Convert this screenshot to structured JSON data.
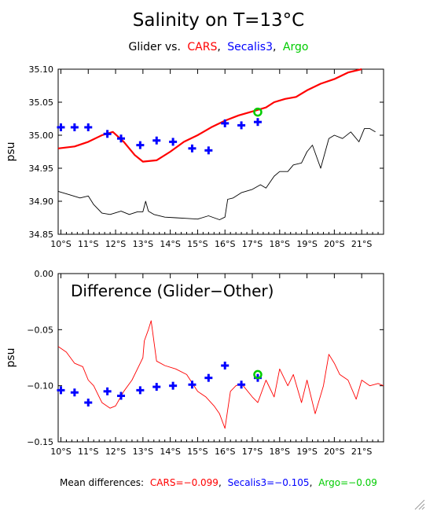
{
  "title": "Salinity on T=13°C",
  "subtitle": {
    "prefix": "Glider vs.",
    "cars": "CARS",
    "sep1": ",",
    "secalis": "Secalis3",
    "sep2": ",",
    "argo": "Argo"
  },
  "footer": {
    "prefix": "Mean differences:",
    "cars": "CARS=−0.099",
    "sep1": ",",
    "secalis": "Secalis3=−0.105",
    "sep2": ",",
    "argo": "Argo=−0.09"
  },
  "colors": {
    "cars": "#ff0000",
    "secalis": "#0000ff",
    "argo": "#00cc00",
    "glider": "#000000"
  },
  "chart_data": [
    {
      "type": "line",
      "ylabel": "psu",
      "ylim": [
        34.85,
        35.1
      ],
      "yticks": [
        "35.10",
        "35.05",
        "35.00",
        "34.95",
        "34.90",
        "34.85"
      ],
      "ytick_values": [
        35.1,
        35.05,
        35.0,
        34.95,
        34.9,
        34.85
      ],
      "xlim": [
        9.9,
        21.8
      ],
      "xticks": [
        "10°S",
        "11°S",
        "12°S",
        "13°S",
        "14°S",
        "15°S",
        "16°S",
        "17°S",
        "18°S",
        "19°S",
        "20°S",
        "21°S"
      ],
      "series": [
        {
          "name": "CARS",
          "x": [
            9.9,
            10.5,
            11.0,
            11.5,
            11.9,
            12.3,
            12.7,
            13.0,
            13.5,
            14.0,
            14.5,
            15.0,
            15.5,
            16.0,
            16.5,
            17.0,
            17.5,
            17.8,
            18.2,
            18.6,
            19.0,
            19.5,
            20.0,
            20.5,
            21.0
          ],
          "y": [
            34.98,
            34.983,
            34.99,
            35.0,
            35.005,
            34.99,
            34.97,
            34.96,
            34.962,
            34.975,
            34.99,
            35.0,
            35.012,
            35.022,
            35.03,
            35.036,
            35.042,
            35.05,
            35.055,
            35.058,
            35.068,
            35.078,
            35.085,
            35.095,
            35.1
          ]
        },
        {
          "name": "Glider",
          "x": [
            9.9,
            10.3,
            10.7,
            11.0,
            11.2,
            11.5,
            11.8,
            12.2,
            12.5,
            12.8,
            13.0,
            13.1,
            13.2,
            13.4,
            13.8,
            14.2,
            14.6,
            15.0,
            15.4,
            15.8,
            16.0,
            16.1,
            16.3,
            16.6,
            17.0,
            17.3,
            17.5,
            17.8,
            18.0,
            18.3,
            18.5,
            18.8,
            19.0,
            19.2,
            19.5,
            19.8,
            20.0,
            20.3,
            20.6,
            20.9,
            21.1,
            21.3,
            21.5
          ],
          "y": [
            34.915,
            34.91,
            34.905,
            34.908,
            34.895,
            34.882,
            34.88,
            34.885,
            34.88,
            34.884,
            34.884,
            34.9,
            34.885,
            34.88,
            34.876,
            34.875,
            34.874,
            34.873,
            34.878,
            34.872,
            34.876,
            34.903,
            34.905,
            34.913,
            34.918,
            34.925,
            34.92,
            34.938,
            34.945,
            34.945,
            34.955,
            34.958,
            34.975,
            34.985,
            34.95,
            34.995,
            35.0,
            34.995,
            35.005,
            34.99,
            35.01,
            35.01,
            35.005
          ]
        },
        {
          "name": "Secalis3",
          "x": [
            10.0,
            10.5,
            11.0,
            11.7,
            12.2,
            12.9,
            13.5,
            14.1,
            14.8,
            15.4,
            16.0,
            16.6,
            17.2
          ],
          "y": [
            35.012,
            35.012,
            35.012,
            35.002,
            34.995,
            34.985,
            34.992,
            34.99,
            34.98,
            34.977,
            35.018,
            35.015,
            35.02
          ]
        },
        {
          "name": "Argo",
          "x": [
            17.2
          ],
          "y": [
            35.035
          ]
        }
      ]
    },
    {
      "type": "line",
      "title": "Difference (Glider−Other)",
      "ylabel": "psu",
      "ylim": [
        -0.15,
        0.0
      ],
      "yticks": [
        "0.00",
        "−0.05",
        "−0.10",
        "−0.15"
      ],
      "ytick_values": [
        0.0,
        -0.05,
        -0.1,
        -0.15
      ],
      "xlim": [
        9.9,
        21.8
      ],
      "xticks": [
        "10°S",
        "11°S",
        "12°S",
        "13°S",
        "14°S",
        "15°S",
        "16°S",
        "17°S",
        "18°S",
        "19°S",
        "20°S",
        "21°S"
      ],
      "series": [
        {
          "name": "CARS",
          "x": [
            9.9,
            10.2,
            10.5,
            10.8,
            11.0,
            11.2,
            11.5,
            11.8,
            12.0,
            12.3,
            12.6,
            12.9,
            13.0,
            13.05,
            13.2,
            13.3,
            13.5,
            13.8,
            14.2,
            14.6,
            15.0,
            15.3,
            15.6,
            15.8,
            16.0,
            16.2,
            16.4,
            16.6,
            17.0,
            17.2,
            17.5,
            17.8,
            18.0,
            18.3,
            18.5,
            18.8,
            19.0,
            19.3,
            19.6,
            19.8,
            20.0,
            20.2,
            20.5,
            20.8,
            21.0,
            21.3,
            21.6,
            21.8
          ],
          "y": [
            -0.065,
            -0.07,
            -0.08,
            -0.083,
            -0.095,
            -0.1,
            -0.115,
            -0.12,
            -0.118,
            -0.105,
            -0.095,
            -0.08,
            -0.075,
            -0.06,
            -0.05,
            -0.042,
            -0.078,
            -0.082,
            -0.085,
            -0.09,
            -0.105,
            -0.11,
            -0.118,
            -0.125,
            -0.138,
            -0.105,
            -0.1,
            -0.098,
            -0.11,
            -0.115,
            -0.095,
            -0.11,
            -0.085,
            -0.1,
            -0.09,
            -0.115,
            -0.095,
            -0.125,
            -0.1,
            -0.072,
            -0.08,
            -0.09,
            -0.095,
            -0.112,
            -0.095,
            -0.1,
            -0.098,
            -0.1
          ]
        },
        {
          "name": "Secalis3",
          "x": [
            10.0,
            10.5,
            11.0,
            11.7,
            12.2,
            12.9,
            13.5,
            14.1,
            14.8,
            15.4,
            16.0,
            16.6,
            17.2
          ],
          "y": [
            -0.104,
            -0.106,
            -0.115,
            -0.105,
            -0.109,
            -0.104,
            -0.101,
            -0.1,
            -0.099,
            -0.093,
            -0.082,
            -0.099,
            -0.093
          ]
        },
        {
          "name": "Argo",
          "x": [
            17.2
          ],
          "y": [
            -0.09
          ]
        }
      ]
    }
  ]
}
